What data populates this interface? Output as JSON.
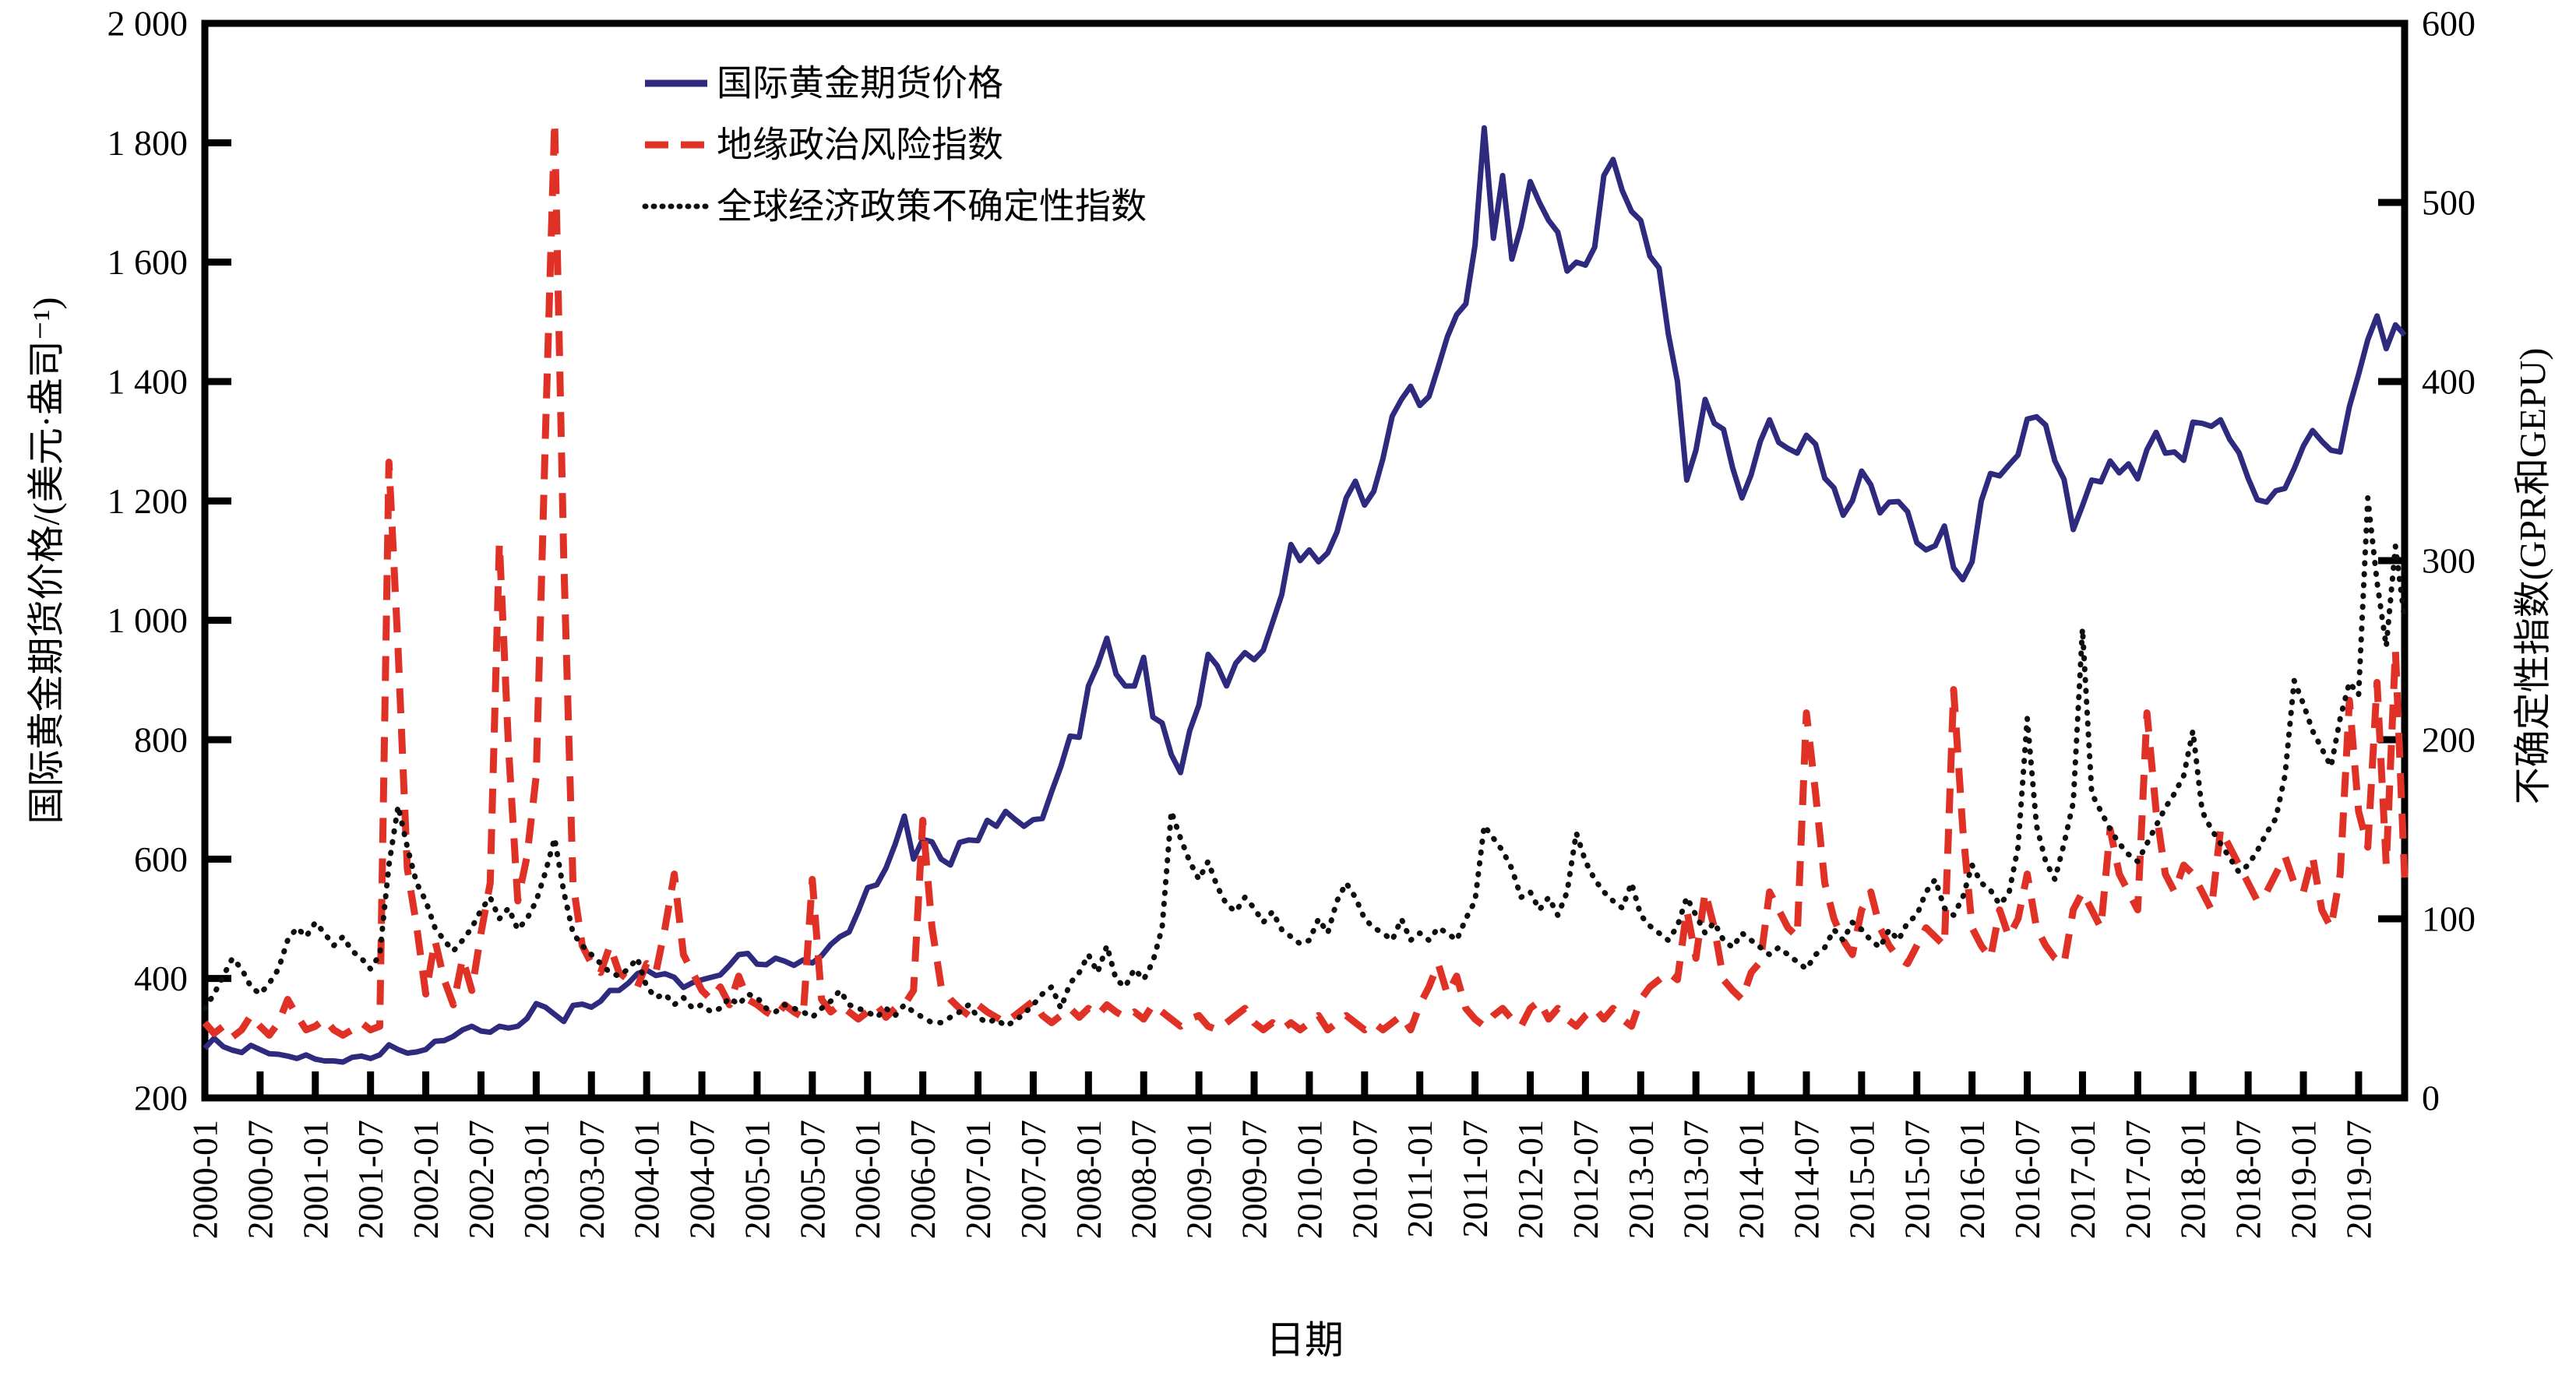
{
  "chart_data": {
    "type": "line",
    "title": "",
    "xlabel": "日期",
    "ylabel_left": "国际黄金期货价格/(美元·盎司⁻¹)",
    "ylabel_right": "不确定性指数(GPR和GEPU)",
    "grid": false,
    "legend_position": "top-left-inside",
    "months_start": "2000-01",
    "months_end": "2019-12",
    "months_count": 240,
    "x_tick_labels": [
      "2000-01",
      "2000-07",
      "2001-01",
      "2001-07",
      "2002-01",
      "2002-07",
      "2003-01",
      "2003-07",
      "2004-01",
      "2004-07",
      "2005-01",
      "2005-07",
      "2006-01",
      "2006-07",
      "2007-01",
      "2007-07",
      "2008-01",
      "2008-07",
      "2009-01",
      "2009-07",
      "2010-01",
      "2010-07",
      "2011-01",
      "2011-07",
      "2012-01",
      "2012-07",
      "2013-01",
      "2013-07",
      "2014-01",
      "2014-07",
      "2015-01",
      "2015-07",
      "2016-01",
      "2016-07",
      "2017-01",
      "2017-07",
      "2018-01",
      "2018-07",
      "2019-01",
      "2019-07"
    ],
    "left_axis": {
      "min": 200,
      "max": 2000,
      "tick_values": [
        2000,
        1800,
        1600,
        1400,
        1200,
        1000,
        800,
        600,
        400,
        200
      ],
      "tick_labels": [
        "2 000",
        "1 800",
        "1 600",
        "1 400",
        "1 200",
        "1 000",
        "800",
        "600",
        "400",
        "200"
      ]
    },
    "right_axis": {
      "min": 0,
      "max": 600,
      "tick_values": [
        600,
        500,
        400,
        300,
        200,
        100,
        0
      ],
      "tick_labels": [
        "600",
        "500",
        "400",
        "300",
        "200",
        "100",
        "0"
      ]
    },
    "series": [
      {
        "name": "国际黄金期货价格",
        "axis": "left",
        "style": "solid",
        "color": "#2e2a7d",
        "values": [
          283,
          300,
          286,
          280,
          276,
          288,
          281,
          274,
          273,
          270,
          266,
          272,
          265,
          262,
          262,
          260,
          268,
          270,
          266,
          272,
          289,
          281,
          275,
          277,
          281,
          295,
          296,
          303,
          314,
          320,
          312,
          310,
          320,
          317,
          320,
          333,
          358,
          352,
          340,
          328,
          355,
          357,
          352,
          362,
          380,
          380,
          392,
          408,
          414,
          405,
          408,
          402,
          385,
          393,
          398,
          402,
          406,
          422,
          440,
          442,
          424,
          423,
          434,
          429,
          422,
          431,
          426,
          438,
          457,
          470,
          478,
          513,
          552,
          557,
          585,
          625,
          672,
          600,
          633,
          629,
          600,
          590,
          628,
          632,
          631,
          665,
          655,
          680,
          667,
          655,
          666,
          668,
          713,
          755,
          806,
          804,
          890,
          925,
          970,
          910,
          890,
          890,
          938,
          838,
          828,
          775,
          745,
          815,
          858,
          943,
          924,
          890,
          928,
          946,
          934,
          950,
          996,
          1043,
          1127,
          1100,
          1118,
          1098,
          1113,
          1148,
          1205,
          1233,
          1193,
          1216,
          1271,
          1342,
          1370,
          1392,
          1360,
          1375,
          1424,
          1475,
          1512,
          1530,
          1628,
          1825,
          1640,
          1745,
          1605,
          1660,
          1735,
          1700,
          1670,
          1650,
          1585,
          1600,
          1595,
          1625,
          1745,
          1772,
          1720,
          1685,
          1670,
          1610,
          1590,
          1480,
          1400,
          1235,
          1285,
          1370,
          1330,
          1320,
          1255,
          1205,
          1244,
          1300,
          1336,
          1298,
          1288,
          1280,
          1310,
          1295,
          1238,
          1222,
          1176,
          1200,
          1250,
          1227,
          1180,
          1198,
          1199,
          1182,
          1130,
          1118,
          1125,
          1158,
          1088,
          1068,
          1098,
          1200,
          1246,
          1242,
          1260,
          1277,
          1337,
          1341,
          1327,
          1267,
          1236,
          1152,
          1192,
          1235,
          1232,
          1267,
          1247,
          1262,
          1237,
          1286,
          1315,
          1280,
          1282,
          1268,
          1332,
          1330,
          1325,
          1336,
          1303,
          1281,
          1238,
          1202,
          1198,
          1217,
          1221,
          1254,
          1292,
          1318,
          1300,
          1285,
          1282,
          1358,
          1412,
          1470,
          1510,
          1455,
          1495,
          1478
        ]
      },
      {
        "name": "地缘政治风险指数",
        "axis": "right",
        "style": "dashed",
        "color": "#e03126",
        "values": [
          42,
          36,
          40,
          34,
          38,
          46,
          40,
          35,
          42,
          55,
          46,
          38,
          40,
          44,
          38,
          35,
          38,
          42,
          38,
          40,
          355,
          250,
          128,
          96,
          58,
          88,
          66,
          52,
          78,
          60,
          92,
          120,
          310,
          195,
          110,
          135,
          180,
          370,
          545,
          300,
          120,
          85,
          75,
          70,
          85,
          70,
          66,
          62,
          75,
          70,
          95,
          125,
          80,
          70,
          60,
          55,
          62,
          52,
          68,
          55,
          52,
          48,
          45,
          52,
          48,
          45,
          122,
          55,
          48,
          52,
          48,
          44,
          48,
          52,
          45,
          50,
          52,
          60,
          155,
          95,
          62,
          55,
          50,
          46,
          52,
          48,
          45,
          42,
          46,
          50,
          54,
          46,
          42,
          46,
          50,
          45,
          50,
          46,
          52,
          48,
          45,
          48,
          44,
          52,
          48,
          44,
          40,
          44,
          46,
          40,
          38,
          42,
          46,
          50,
          42,
          38,
          42,
          38,
          42,
          38,
          42,
          46,
          38,
          42,
          46,
          42,
          38,
          42,
          38,
          42,
          46,
          38,
          52,
          62,
          75,
          58,
          68,
          50,
          44,
          40,
          46,
          50,
          44,
          40,
          50,
          54,
          44,
          50,
          44,
          40,
          46,
          50,
          44,
          50,
          44,
          40,
          55,
          62,
          66,
          70,
          66,
          105,
          78,
          115,
          95,
          66,
          60,
          55,
          70,
          76,
          115,
          105,
          95,
          90,
          215,
          170,
          120,
          100,
          88,
          80,
          105,
          115,
          95,
          85,
          78,
          75,
          85,
          95,
          90,
          85,
          228,
          150,
          95,
          85,
          78,
          105,
          90,
          100,
          125,
          95,
          85,
          78,
          75,
          105,
          115,
          105,
          95,
          150,
          125,
          115,
          105,
          215,
          160,
          125,
          115,
          130,
          125,
          115,
          105,
          150,
          140,
          130,
          120,
          110,
          115,
          125,
          135,
          120,
          115,
          135,
          105,
          95,
          125,
          222,
          160,
          140,
          232,
          130,
          250,
          123
        ]
      },
      {
        "name": "全球经济政策不确定性指数",
        "axis": "right",
        "style": "dotted",
        "color": "#0f0f0f",
        "values": [
          50,
          58,
          68,
          78,
          72,
          62,
          58,
          64,
          72,
          88,
          95,
          90,
          98,
          92,
          85,
          90,
          82,
          78,
          72,
          80,
          130,
          163,
          140,
          120,
          110,
          95,
          88,
          82,
          88,
          95,
          105,
          112,
          100,
          106,
          94,
          100,
          110,
          126,
          145,
          115,
          92,
          85,
          80,
          75,
          70,
          68,
          72,
          78,
          62,
          56,
          58,
          52,
          56,
          50,
          52,
          48,
          50,
          56,
          52,
          58,
          56,
          50,
          48,
          52,
          50,
          48,
          45,
          50,
          54,
          60,
          52,
          50,
          48,
          45,
          50,
          46,
          52,
          48,
          45,
          42,
          42,
          45,
          48,
          52,
          45,
          42,
          44,
          40,
          43,
          47,
          52,
          58,
          62,
          50,
          64,
          70,
          80,
          70,
          85,
          66,
          62,
          72,
          66,
          76,
          95,
          160,
          145,
          132,
          122,
          132,
          118,
          108,
          104,
          112,
          106,
          98,
          104,
          94,
          90,
          86,
          88,
          100,
          92,
          110,
          120,
          112,
          100,
          95,
          92,
          88,
          100,
          88,
          92,
          88,
          95,
          92,
          88,
          100,
          110,
          152,
          145,
          138,
          128,
          112,
          115,
          105,
          112,
          102,
          115,
          148,
          132,
          122,
          115,
          110,
          106,
          120,
          102,
          96,
          92,
          88,
          96,
          112,
          102,
          92,
          98,
          88,
          84,
          92,
          88,
          84,
          80,
          84,
          80,
          76,
          72,
          80,
          84,
          94,
          88,
          98,
          94,
          88,
          84,
          94,
          88,
          98,
          102,
          115,
          122,
          106,
          102,
          112,
          130,
          120,
          116,
          108,
          114,
          140,
          212,
          152,
          132,
          122,
          142,
          165,
          262,
          170,
          160,
          150,
          142,
          136,
          132,
          142,
          152,
          162,
          170,
          180,
          205,
          160,
          150,
          142,
          134,
          126,
          130,
          138,
          148,
          156,
          180,
          233,
          220,
          205,
          195,
          185,
          212,
          232,
          225,
          335,
          288,
          252,
          308,
          267
        ]
      }
    ]
  },
  "colors": {
    "background": "#ffffff",
    "axis": "#000000",
    "gold_line": "#2e2a7d",
    "gpr_line": "#e03126",
    "gepu_line": "#0f0f0f"
  }
}
